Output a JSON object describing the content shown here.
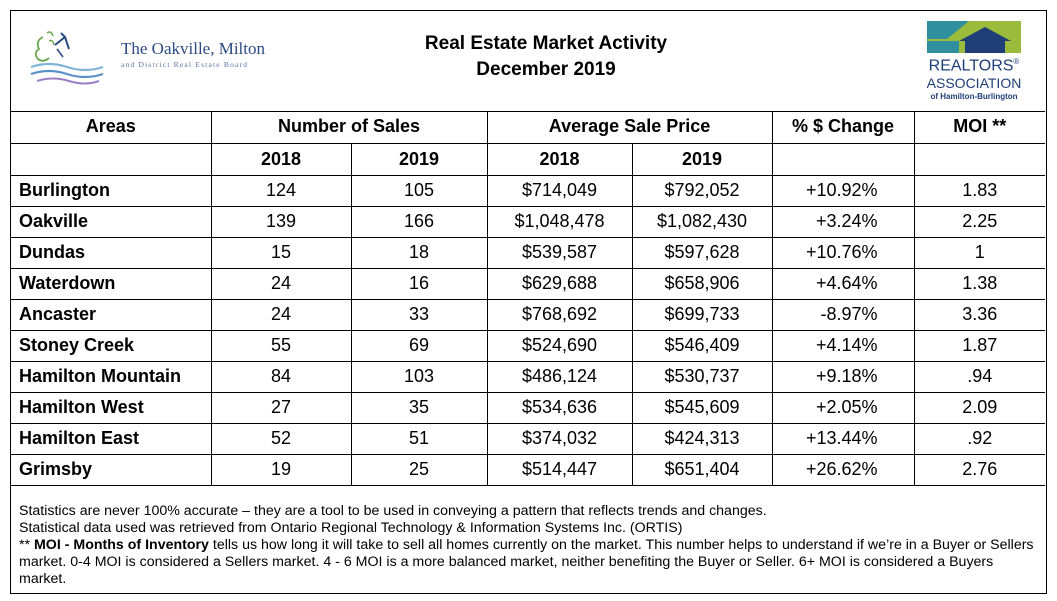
{
  "header": {
    "board_name": "The Oakville, Milton",
    "board_subtitle": "and District Real Estate Board",
    "title_line1": "Real Estate Market Activity",
    "title_line2": "December 2019",
    "realtors_logo": {
      "line1": "REALTORS",
      "line1_mark": "®",
      "line2": "ASSOCIATION",
      "line3": "of Hamilton-Burlington"
    },
    "colors": {
      "oak_blue": "#2b4a83",
      "realtors_navy": "#1f3e78",
      "realtors_green": "#9bbb3c",
      "realtors_teal": "#2f8f9f"
    }
  },
  "table": {
    "headers": {
      "areas": "Areas",
      "sales": "Number of Sales",
      "price": "Average Sale Price",
      "change": "% $ Change",
      "moi": "MOI **"
    },
    "subheaders": {
      "sales_2018": "2018",
      "sales_2019": "2019",
      "price_2018": "2018",
      "price_2019": "2019"
    },
    "rows": [
      {
        "area": "Burlington",
        "sales_2018": "124",
        "sales_2019": "105",
        "price_2018": "$714,049",
        "price_2019": "$792,052",
        "change": "+10.92%",
        "moi": "1.83"
      },
      {
        "area": "Oakville",
        "sales_2018": "139",
        "sales_2019": "166",
        "price_2018": "$1,048,478",
        "price_2019": "$1,082,430",
        "change": "+3.24%",
        "moi": "2.25"
      },
      {
        "area": "Dundas",
        "sales_2018": "15",
        "sales_2019": "18",
        "price_2018": "$539,587",
        "price_2019": "$597,628",
        "change": "+10.76%",
        "moi": "1"
      },
      {
        "area": "Waterdown",
        "sales_2018": "24",
        "sales_2019": "16",
        "price_2018": "$629,688",
        "price_2019": "$658,906",
        "change": "+4.64%",
        "moi": "1.38"
      },
      {
        "area": "Ancaster",
        "sales_2018": "24",
        "sales_2019": "33",
        "price_2018": "$768,692",
        "price_2019": "$699,733",
        "change": "-8.97%",
        "moi": "3.36"
      },
      {
        "area": "Stoney Creek",
        "sales_2018": "55",
        "sales_2019": "69",
        "price_2018": "$524,690",
        "price_2019": "$546,409",
        "change": "+4.14%",
        "moi": "1.87"
      },
      {
        "area": "Hamilton Mountain",
        "sales_2018": "84",
        "sales_2019": "103",
        "price_2018": "$486,124",
        "price_2019": "$530,737",
        "change": "+9.18%",
        "moi": ".94"
      },
      {
        "area": "Hamilton West",
        "sales_2018": "27",
        "sales_2019": "35",
        "price_2018": "$534,636",
        "price_2019": "$545,609",
        "change": "+2.05%",
        "moi": "2.09"
      },
      {
        "area": "Hamilton East",
        "sales_2018": "52",
        "sales_2019": "51",
        "price_2018": "$374,032",
        "price_2019": "$424,313",
        "change": "+13.44%",
        "moi": ".92"
      },
      {
        "area": "Grimsby",
        "sales_2018": "19",
        "sales_2019": "25",
        "price_2018": "$514,447",
        "price_2019": "$651,404",
        "change": "+26.62%",
        "moi": "2.76"
      }
    ]
  },
  "notes": {
    "line1": "Statistics are never 100% accurate – they are a tool to be used in conveying a pattern that reflects trends and changes.",
    "line2": "Statistical data used was retrieved from Ontario Regional Technology & Information Systems Inc. (ORTIS)",
    "moi_prefix": "** ",
    "moi_bold": "MOI - Months of Inventory",
    "moi_text": " tells us how long it will take to sell all homes currently on the market. This number helps to understand if we’re in a Buyer or Sellers market. 0-4 MOI is considered a Sellers market. 4 - 6 MOI is a more balanced market, neither benefiting the Buyer or Seller. 6+ MOI is considered a Buyers market."
  }
}
